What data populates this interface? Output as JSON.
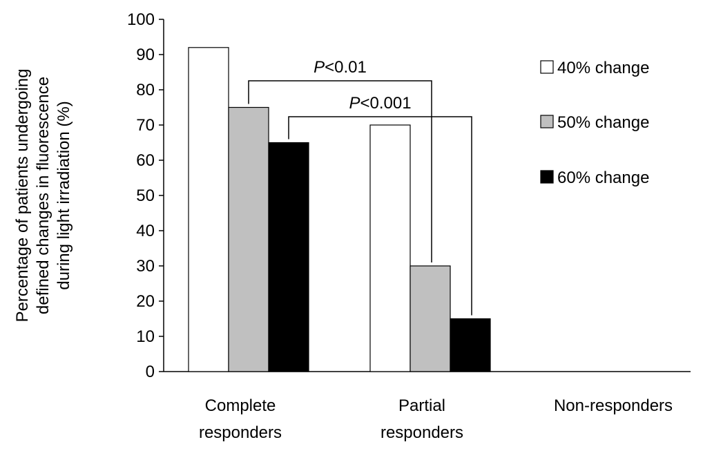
{
  "chart_data": {
    "type": "bar",
    "categories": [
      [
        "Complete",
        "responders"
      ],
      [
        "Partial",
        "responders"
      ],
      [
        "Non-responders"
      ]
    ],
    "series": [
      {
        "name": "40% change",
        "color": "#ffffff",
        "values": [
          92,
          70,
          0
        ]
      },
      {
        "name": "50% change",
        "color": "#c0c0c0",
        "values": [
          75,
          30,
          0
        ]
      },
      {
        "name": "60% change",
        "color": "#000000",
        "values": [
          65,
          15,
          0
        ]
      }
    ],
    "ylabel": [
      "Percentage of patients undergoing",
      "defined changes in fluorescence",
      "during light irradiation (%)"
    ],
    "xlabel": "",
    "ylim": [
      0,
      100
    ],
    "yticks": [
      0,
      10,
      20,
      30,
      40,
      50,
      60,
      70,
      80,
      90,
      100
    ],
    "grid": false,
    "legend_position": "right",
    "annotations": [
      {
        "italic": "P",
        "text": "<0.01",
        "from": {
          "series": 1,
          "category": 0
        },
        "to": {
          "series": 1,
          "category": 1
        }
      },
      {
        "italic": "P",
        "text": "<0.001",
        "from": {
          "series": 2,
          "category": 0
        },
        "to": {
          "series": 2,
          "category": 1
        }
      }
    ]
  }
}
